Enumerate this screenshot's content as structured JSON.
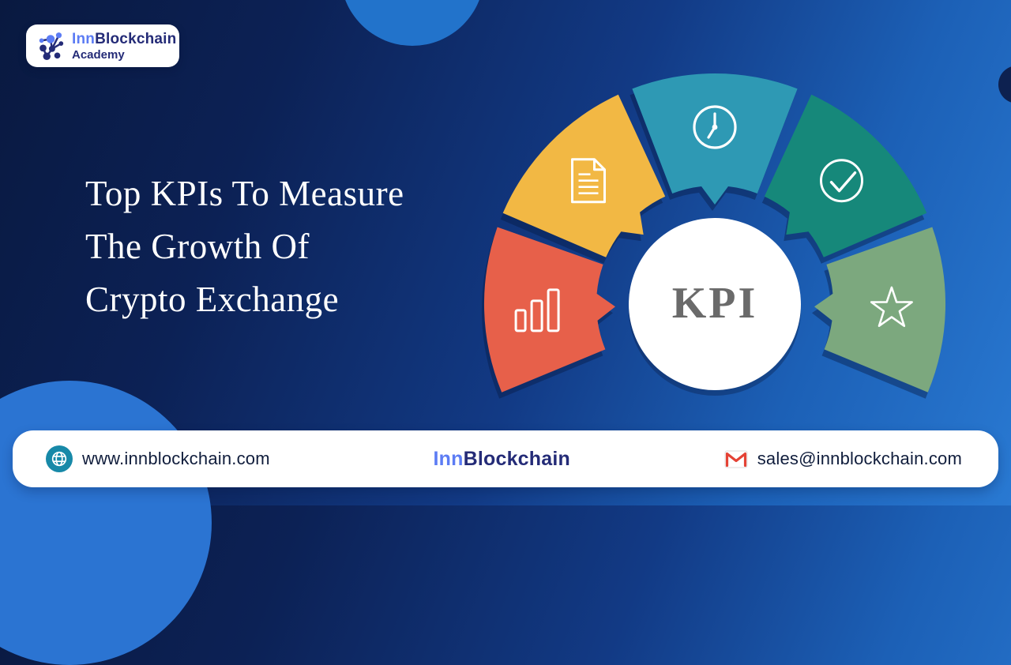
{
  "badge": {
    "brand_first": "Inn",
    "brand_rest": "Blockchain",
    "subtitle": "Academy"
  },
  "title": {
    "line1": "Top KPIs To Measure",
    "line2": "The Growth Of",
    "line3": "Crypto Exchange"
  },
  "gauge": {
    "center_label": "KPI",
    "segments": [
      {
        "name": "growth-bars",
        "icon": "bar-chart-icon",
        "color": "#E7604A"
      },
      {
        "name": "report",
        "icon": "document-icon",
        "color": "#F2B844"
      },
      {
        "name": "time",
        "icon": "clock-icon",
        "color": "#2E99B4"
      },
      {
        "name": "quality",
        "icon": "check-circle-icon",
        "color": "#16887A"
      },
      {
        "name": "rating",
        "icon": "star-icon",
        "color": "#7CA87E"
      }
    ]
  },
  "footer": {
    "website": {
      "icon": "globe-icon",
      "text": "www.innblockchain.com"
    },
    "brand": {
      "icon": "molecule-icon",
      "first": "Inn",
      "rest": "Blockchain"
    },
    "email": {
      "icon": "gmail-icon",
      "text": "sales@innblockchain.com"
    }
  },
  "colors": {
    "brand_blue": "#5C7CF4",
    "brand_navy": "#242B77",
    "kpi_text": "#6A6A6A",
    "globe_teal": "#1789A8",
    "gmail_red": "#E44235",
    "background_dark": "#091940",
    "background_bright": "#2979D2"
  }
}
